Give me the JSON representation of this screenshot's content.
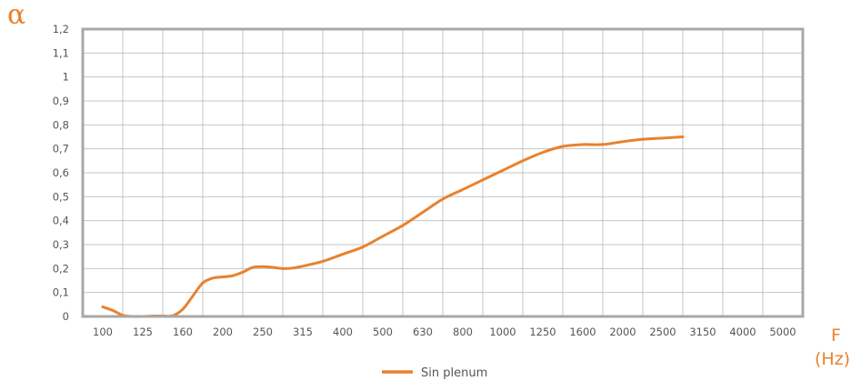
{
  "chart_data": {
    "type": "line",
    "ylabel": "α",
    "xlabel_symbol": "F",
    "xlabel_unit": "(Hz)",
    "x": [
      "100",
      "125",
      "160",
      "200",
      "250",
      "315",
      "400",
      "500",
      "630",
      "800",
      "1000",
      "1250",
      "1600",
      "2000",
      "2500",
      "3150",
      "4000",
      "5000"
    ],
    "y_ticks": [
      "0",
      "0,1",
      "0,2",
      "0,3",
      "0,4",
      "0,5",
      "0,6",
      "0,7",
      "0,8",
      "0,9",
      "1",
      "1,1",
      "1,2"
    ],
    "ylim": [
      0,
      1.2
    ],
    "grid": true,
    "legend_position": "bottom-center",
    "series": [
      {
        "name": "Sin plenum",
        "color": "#E8822E",
        "points": [
          [
            0,
            0.04
          ],
          [
            0.25,
            0.025
          ],
          [
            0.5,
            0.005
          ],
          [
            0.75,
            0.0
          ],
          [
            1,
            0.0
          ],
          [
            1.25,
            0.002
          ],
          [
            1.5,
            0.002
          ],
          [
            1.75,
            0.003
          ],
          [
            2,
            0.03
          ],
          [
            2.25,
            0.085
          ],
          [
            2.5,
            0.14
          ],
          [
            2.75,
            0.16
          ],
          [
            3,
            0.165
          ],
          [
            3.25,
            0.17
          ],
          [
            3.5,
            0.185
          ],
          [
            3.75,
            0.205
          ],
          [
            4,
            0.208
          ],
          [
            4.25,
            0.205
          ],
          [
            4.5,
            0.2
          ],
          [
            4.75,
            0.202
          ],
          [
            5,
            0.21
          ],
          [
            5.5,
            0.23
          ],
          [
            6,
            0.26
          ],
          [
            6.5,
            0.29
          ],
          [
            7,
            0.335
          ],
          [
            7.5,
            0.38
          ],
          [
            8,
            0.435
          ],
          [
            8.5,
            0.49
          ],
          [
            9,
            0.53
          ],
          [
            9.5,
            0.57
          ],
          [
            10,
            0.61
          ],
          [
            10.5,
            0.65
          ],
          [
            11,
            0.685
          ],
          [
            11.5,
            0.71
          ],
          [
            12,
            0.718
          ],
          [
            12.5,
            0.718
          ],
          [
            13,
            0.73
          ],
          [
            13.5,
            0.74
          ],
          [
            14,
            0.745
          ],
          [
            14.5,
            0.75
          ]
        ]
      }
    ]
  }
}
